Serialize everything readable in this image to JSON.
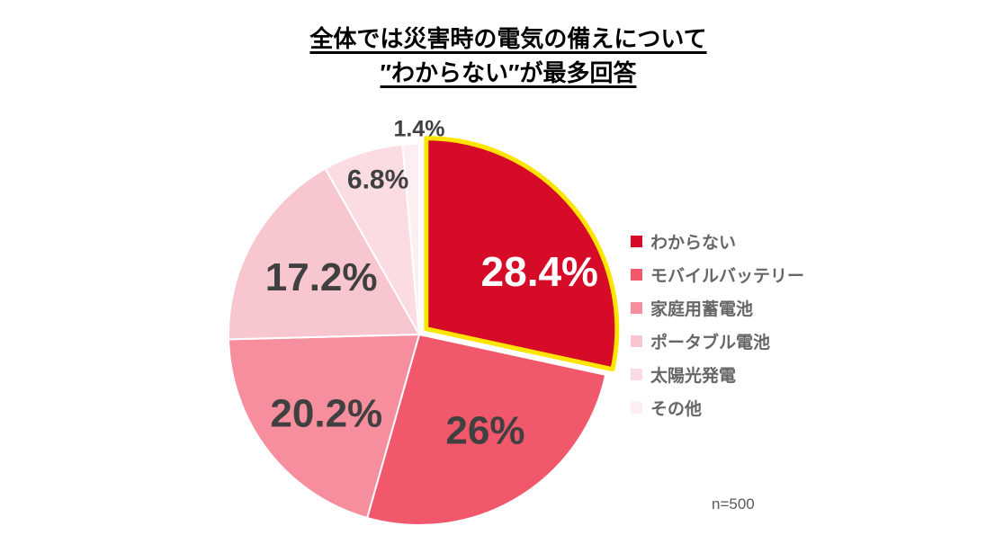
{
  "title": {
    "line1": "全体では災害時の電気の備えについて",
    "line2": "″わからない″が最多回答"
  },
  "sample_size": "n=500",
  "chart_data": {
    "type": "pie",
    "title": "全体では災害時の電気の備えについて ″わからない″が最多回答",
    "categories": [
      "わからない",
      "モバイルバッテリー",
      "家庭用蓄電池",
      "ポータブル電池",
      "太陽光発電",
      "その他"
    ],
    "values": [
      28.4,
      26,
      20.2,
      17.2,
      6.8,
      1.4
    ],
    "labels": [
      "28.4%",
      "26%",
      "20.2%",
      "17.2%",
      "6.8%",
      "1.4%"
    ],
    "colors": [
      "#D60B28",
      "#F1586C",
      "#F78E9D",
      "#F8C6CF",
      "#FADCE2",
      "#FCEEF1"
    ],
    "label_colors": [
      "#ffffff",
      "#404040",
      "#404040",
      "#404040",
      "#404040",
      "#404040"
    ],
    "highlight": {
      "index": 0,
      "outline_color": "#FFE500"
    },
    "start_angle_deg": 0,
    "direction": "clockwise",
    "legend_position": "right",
    "sample_note": "n=500"
  }
}
